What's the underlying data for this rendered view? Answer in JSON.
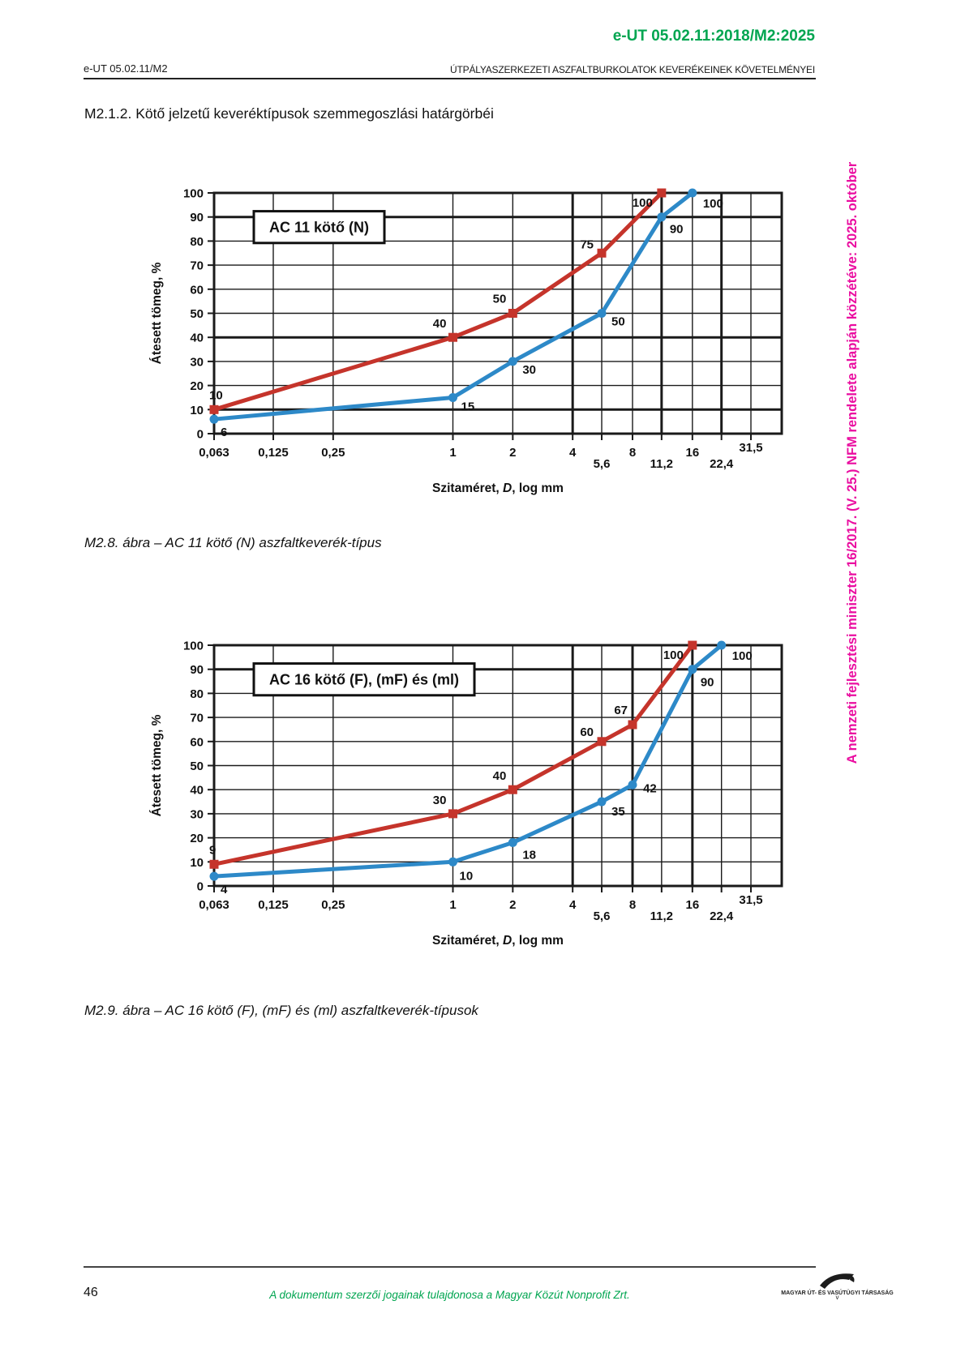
{
  "header": {
    "code_full": "e-UT 05.02.11:2018/M2:2025",
    "code_short": "e-UT 05.02.11/M2",
    "title": "ÚTPÁLYASZERKEZETI ASZFALTBURKOLATOK KEVERÉKEINEK KÖVETELMÉNYEI"
  },
  "section_title": "M2.1.2. Kötő jelzetű keveréktípusok szemmegoszlási határgörbéi",
  "side_note": "A nemzeti fejlesztési miniszter 16/2017. (V. 25.) NFM rendelete alapján közzétéve: 2025. október",
  "footer": {
    "page_number": "46",
    "copyright": "A dokumentum szerzői jogainak tulajdonosa a Magyar Közút Nonprofit Zrt.",
    "logo_caption": "MAGYAR ÚT- ÉS VASÚTÜGYI TÁRSASÁG"
  },
  "colors": {
    "accent_green": "#00A550",
    "accent_magenta": "#EA0DA0",
    "series_red": "#C5342B",
    "series_blue": "#2D89C8",
    "grid": "#1A1A1A",
    "text": "#111111"
  },
  "chart_data": [
    {
      "type": "line",
      "title": "AC 11 kötő (N)",
      "caption": "M2.8. ábra – AC 11 kötő (N) aszfaltkeverék-típus",
      "xlabel": {
        "pre": "Szitaméret, ",
        "italic": "D",
        "post": ", log mm"
      },
      "ylabel": "Átesett tömeg, %",
      "x_scale": "log",
      "xlim": [
        0.063,
        45
      ],
      "ylim": [
        0,
        100
      ],
      "y_tick_step": 10,
      "grid": true,
      "legend": "none",
      "x_ticks": [
        {
          "v": 0.063,
          "label": "0,063",
          "row": 0
        },
        {
          "v": 0.125,
          "label": "0,125",
          "row": 0
        },
        {
          "v": 0.25,
          "label": "0,25",
          "row": 0
        },
        {
          "v": 1,
          "label": "1",
          "row": 0
        },
        {
          "v": 2,
          "label": "2",
          "row": 0
        },
        {
          "v": 4,
          "label": "4",
          "row": 0
        },
        {
          "v": 5.6,
          "label": "5,6",
          "row": 1
        },
        {
          "v": 8,
          "label": "8",
          "row": 0
        },
        {
          "v": 11.2,
          "label": "11,2",
          "row": 1
        },
        {
          "v": 16,
          "label": "16",
          "row": 0
        },
        {
          "v": 22.4,
          "label": "22,4",
          "row": 1
        },
        {
          "v": 31.5,
          "label": "31,5",
          "row": -1
        }
      ],
      "emphasis": {
        "h": [
          10,
          40,
          90
        ],
        "v": [
          4,
          11.2,
          22.4
        ]
      },
      "series": [
        {
          "id": "upper-limit",
          "color_key": "series_red",
          "marker": "square",
          "points": [
            {
              "x": 0.063,
              "y": 10,
              "label": "10",
              "dx": -6,
              "dy": -13,
              "anchor": "start"
            },
            {
              "x": 1,
              "y": 40,
              "label": "40",
              "dx": -8,
              "dy": -12,
              "anchor": "end"
            },
            {
              "x": 2,
              "y": 50,
              "label": "50",
              "dx": -8,
              "dy": -13,
              "anchor": "end"
            },
            {
              "x": 5.6,
              "y": 75,
              "label": "75",
              "dx": -10,
              "dy": -6,
              "anchor": "end"
            },
            {
              "x": 11.2,
              "y": 100,
              "label": "100",
              "dx": -11,
              "dy": 17,
              "anchor": "end"
            }
          ]
        },
        {
          "id": "lower-limit",
          "color_key": "series_blue",
          "marker": "circle",
          "points": [
            {
              "x": 0.063,
              "y": 6,
              "label": "6",
              "dx": 8,
              "dy": 21,
              "anchor": "start"
            },
            {
              "x": 1,
              "y": 15,
              "label": "15",
              "dx": 10,
              "dy": 16,
              "anchor": "start"
            },
            {
              "x": 2,
              "y": 30,
              "label": "30",
              "dx": 12,
              "dy": 15,
              "anchor": "start"
            },
            {
              "x": 5.6,
              "y": 50,
              "label": "50",
              "dx": 12,
              "dy": 15,
              "anchor": "start"
            },
            {
              "x": 11.2,
              "y": 90,
              "label": "90",
              "dx": 10,
              "dy": 20,
              "anchor": "start"
            },
            {
              "x": 16,
              "y": 100,
              "label": "100",
              "dx": 13,
              "dy": 18,
              "anchor": "start"
            }
          ]
        }
      ]
    },
    {
      "type": "line",
      "title": "AC 16 kötő (F), (mF) és (ml)",
      "caption": "M2.9. ábra – AC 16 kötő (F), (mF) és (ml) aszfaltkeverék-típusok",
      "xlabel": {
        "pre": "Szitaméret, ",
        "italic": "D",
        "post": ", log mm"
      },
      "ylabel": "Átesett tömeg, %",
      "x_scale": "log",
      "xlim": [
        0.063,
        45
      ],
      "ylim": [
        0,
        100
      ],
      "y_tick_step": 10,
      "grid": true,
      "legend": "none",
      "x_ticks": [
        {
          "v": 0.063,
          "label": "0,063",
          "row": 0
        },
        {
          "v": 0.125,
          "label": "0,125",
          "row": 0
        },
        {
          "v": 0.25,
          "label": "0,25",
          "row": 0
        },
        {
          "v": 1,
          "label": "1",
          "row": 0
        },
        {
          "v": 2,
          "label": "2",
          "row": 0
        },
        {
          "v": 4,
          "label": "4",
          "row": 0
        },
        {
          "v": 5.6,
          "label": "5,6",
          "row": 1
        },
        {
          "v": 8,
          "label": "8",
          "row": 0
        },
        {
          "v": 11.2,
          "label": "11,2",
          "row": 1
        },
        {
          "v": 16,
          "label": "16",
          "row": 0
        },
        {
          "v": 22.4,
          "label": "22,4",
          "row": 1
        },
        {
          "v": 31.5,
          "label": "31,5",
          "row": -1
        }
      ],
      "emphasis": {
        "h": [
          90
        ],
        "v": [
          4,
          8,
          16
        ]
      },
      "series": [
        {
          "id": "upper-limit",
          "color_key": "series_red",
          "marker": "square",
          "points": [
            {
              "x": 0.063,
              "y": 9,
              "label": "9",
              "dx": -6,
              "dy": -13,
              "anchor": "start"
            },
            {
              "x": 1,
              "y": 30,
              "label": "30",
              "dx": -8,
              "dy": -12,
              "anchor": "end"
            },
            {
              "x": 2,
              "y": 40,
              "label": "40",
              "dx": -8,
              "dy": -12,
              "anchor": "end"
            },
            {
              "x": 5.6,
              "y": 60,
              "label": "60",
              "dx": -10,
              "dy": -7,
              "anchor": "end"
            },
            {
              "x": 8,
              "y": 67,
              "label": "67",
              "dx": -6,
              "dy": -13,
              "anchor": "end"
            },
            {
              "x": 16,
              "y": 100,
              "label": "100",
              "dx": -11,
              "dy": 17,
              "anchor": "end"
            }
          ]
        },
        {
          "id": "lower-limit",
          "color_key": "series_blue",
          "marker": "circle",
          "points": [
            {
              "x": 0.063,
              "y": 4,
              "label": "4",
              "dx": 8,
              "dy": 21,
              "anchor": "start"
            },
            {
              "x": 1,
              "y": 10,
              "label": "10",
              "dx": 8,
              "dy": 22,
              "anchor": "start"
            },
            {
              "x": 2,
              "y": 18,
              "label": "18",
              "dx": 12,
              "dy": 20,
              "anchor": "start"
            },
            {
              "x": 5.6,
              "y": 35,
              "label": "35",
              "dx": 12,
              "dy": 17,
              "anchor": "start"
            },
            {
              "x": 8,
              "y": 42,
              "label": "42",
              "dx": 13,
              "dy": 9,
              "anchor": "start"
            },
            {
              "x": 16,
              "y": 90,
              "label": "90",
              "dx": 10,
              "dy": 21,
              "anchor": "start"
            },
            {
              "x": 22.4,
              "y": 100,
              "label": "100",
              "dx": 13,
              "dy": 18,
              "anchor": "start"
            }
          ]
        }
      ]
    }
  ]
}
